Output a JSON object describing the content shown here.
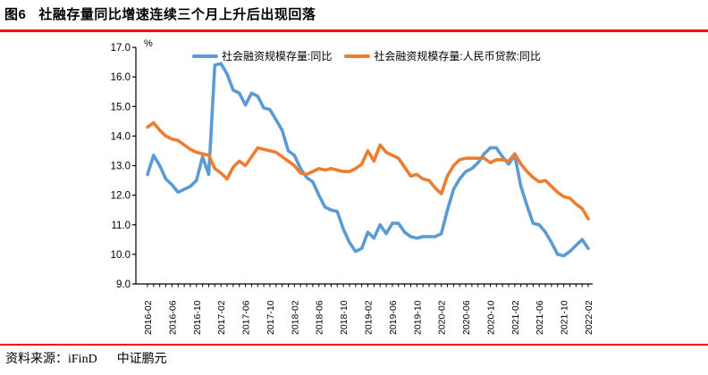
{
  "title": {
    "figure_no": "图6",
    "text": "社融存量同比增速连续三个月上升后出现回落"
  },
  "footer": {
    "source": "资料来源：iFinD",
    "org": "中证鹏元"
  },
  "colors": {
    "rule_red": "#fe0000",
    "blue": "#5b9bd5",
    "orange": "#ed7d31",
    "axis": "#000000"
  },
  "chart_data": {
    "type": "line",
    "unit": "%",
    "ylim": [
      9.0,
      17.0
    ],
    "y_ticks": [
      "17.0",
      "16.0",
      "15.0",
      "14.0",
      "13.0",
      "12.0",
      "11.0",
      "10.0",
      "9.0"
    ],
    "x_tick_labels": [
      "2016-02",
      "2016-06",
      "2016-10",
      "2017-02",
      "2017-06",
      "2017-10",
      "2018-02",
      "2018-06",
      "2018-10",
      "2019-02",
      "2019-06",
      "2019-10",
      "2020-02",
      "2020-06",
      "2020-10",
      "2021-02",
      "2021-06",
      "2021-10",
      "2022-02"
    ],
    "label_every_n_months": 4,
    "grid": false,
    "legend_position": "top",
    "x": [
      "2016-02",
      "2016-03",
      "2016-04",
      "2016-05",
      "2016-06",
      "2016-07",
      "2016-08",
      "2016-09",
      "2016-10",
      "2016-11",
      "2016-12",
      "2017-01",
      "2017-02",
      "2017-03",
      "2017-04",
      "2017-05",
      "2017-06",
      "2017-07",
      "2017-08",
      "2017-09",
      "2017-10",
      "2017-11",
      "2017-12",
      "2018-01",
      "2018-02",
      "2018-03",
      "2018-04",
      "2018-05",
      "2018-06",
      "2018-07",
      "2018-08",
      "2018-09",
      "2018-10",
      "2018-11",
      "2018-12",
      "2019-01",
      "2019-02",
      "2019-03",
      "2019-04",
      "2019-05",
      "2019-06",
      "2019-07",
      "2019-08",
      "2019-09",
      "2019-10",
      "2019-11",
      "2019-12",
      "2020-01",
      "2020-02",
      "2020-03",
      "2020-04",
      "2020-05",
      "2020-06",
      "2020-07",
      "2020-08",
      "2020-09",
      "2020-10",
      "2020-11",
      "2020-12",
      "2021-01",
      "2021-02",
      "2021-03",
      "2021-04",
      "2021-05",
      "2021-06",
      "2021-07",
      "2021-08",
      "2021-09",
      "2021-10",
      "2021-11",
      "2021-12",
      "2022-01",
      "2022-02"
    ],
    "series": [
      {
        "name": "社会融资规模存量:同比",
        "color": "#5b9bd5",
        "values": [
          12.7,
          13.35,
          13.0,
          12.55,
          12.35,
          12.1,
          12.2,
          12.3,
          12.5,
          13.3,
          12.7,
          16.4,
          16.45,
          16.1,
          15.55,
          15.45,
          15.05,
          15.45,
          15.35,
          14.95,
          14.9,
          14.55,
          14.2,
          13.5,
          13.35,
          12.9,
          12.6,
          12.45,
          12.0,
          11.6,
          11.5,
          11.45,
          10.85,
          10.4,
          10.1,
          10.2,
          10.75,
          10.55,
          11.0,
          10.7,
          11.05,
          11.05,
          10.75,
          10.6,
          10.55,
          10.6,
          10.6,
          10.6,
          10.7,
          11.5,
          12.2,
          12.55,
          12.8,
          12.9,
          13.1,
          13.4,
          13.6,
          13.6,
          13.3,
          13.05,
          13.35,
          12.3,
          11.65,
          11.05,
          11.0,
          10.75,
          10.4,
          10.0,
          9.95,
          10.1,
          10.3,
          10.5,
          10.2
        ]
      },
      {
        "name": "社会融资规模存量:人民币贷款:同比",
        "color": "#ed7d31",
        "values": [
          14.3,
          14.45,
          14.2,
          14.0,
          13.9,
          13.85,
          13.7,
          13.55,
          13.45,
          13.4,
          13.35,
          12.9,
          12.75,
          12.55,
          12.95,
          13.15,
          13.0,
          13.3,
          13.6,
          13.55,
          13.5,
          13.45,
          13.3,
          13.15,
          13.0,
          12.75,
          12.7,
          12.8,
          12.9,
          12.85,
          12.9,
          12.85,
          12.8,
          12.8,
          12.9,
          13.05,
          13.5,
          13.15,
          13.7,
          13.45,
          13.35,
          13.25,
          12.95,
          12.65,
          12.7,
          12.55,
          12.5,
          12.25,
          12.05,
          12.65,
          13.0,
          13.2,
          13.25,
          13.25,
          13.25,
          13.25,
          13.1,
          13.2,
          13.2,
          13.15,
          13.4,
          13.05,
          12.8,
          12.6,
          12.45,
          12.5,
          12.3,
          12.1,
          11.95,
          11.9,
          11.7,
          11.55,
          11.2
        ]
      }
    ]
  }
}
